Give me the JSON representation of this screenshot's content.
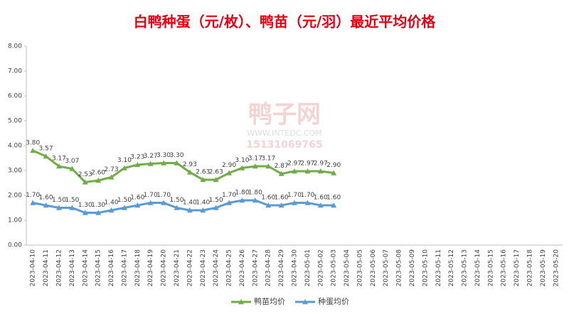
{
  "chart_data": {
    "type": "line",
    "title": "白鸭种蛋（元/枚）、鸭苗（元/羽）最近平均价格",
    "watermark": [
      "鸭子网",
      "WWW.INTEDC.COM",
      "15131069765"
    ],
    "categories": [
      "2023-04-10",
      "2023-04-11",
      "2023-04-12",
      "2023-04-13",
      "2023-04-14",
      "2023-04-15",
      "2023-04-16",
      "2023-04-17",
      "2023-04-18",
      "2023-04-19",
      "2023-04-20",
      "2023-04-21",
      "2023-04-22",
      "2023-04-23",
      "2023-04-24",
      "2023-04-25",
      "2023-04-26",
      "2023-04-27",
      "2023-04-28",
      "2023-04-29",
      "2023-04-30",
      "2023-05-01",
      "2023-05-02",
      "2023-05-03",
      "2023-05-04",
      "2023-05-05",
      "2023-05-06",
      "2023-05-07",
      "2023-05-08",
      "2023-05-09",
      "2023-05-10",
      "2023-05-11",
      "2023-05-12",
      "2023-05-13",
      "2023-05-14",
      "2023-05-15",
      "2023-05-16",
      "2023-05-17",
      "2023-05-18",
      "2023-05-19",
      "2023-05-20"
    ],
    "series": [
      {
        "name": "鸭苗均价",
        "color": "#70ad47",
        "values": [
          3.8,
          3.57,
          3.17,
          3.07,
          2.53,
          2.6,
          2.73,
          3.1,
          3.23,
          3.27,
          3.3,
          3.3,
          2.93,
          2.63,
          2.63,
          2.9,
          3.1,
          3.17,
          3.17,
          2.87,
          2.97,
          2.97,
          2.97,
          2.9,
          null,
          null,
          null,
          null,
          null,
          null,
          null,
          null,
          null,
          null,
          null,
          null,
          null,
          null,
          null,
          null,
          null
        ],
        "value_labels": [
          "3.80",
          "3.57",
          "3.17",
          "3.07",
          "2.53",
          "2.60",
          "2.73",
          "3.10",
          "3.23",
          "3.27",
          "3.30",
          "3.30",
          "2.93",
          "2.63",
          "2.63",
          "2.90",
          "3.10",
          "3.17",
          "3.17",
          "2.87",
          "2.97",
          "2.97",
          "2.97",
          "2.90",
          null,
          null,
          null,
          null,
          null,
          null,
          null,
          null,
          null,
          null,
          null,
          null,
          null,
          null,
          null,
          null,
          null
        ]
      },
      {
        "name": "种蛋均价",
        "color": "#5b9bd5",
        "values": [
          1.7,
          1.6,
          1.5,
          1.5,
          1.3,
          1.3,
          1.4,
          1.5,
          1.6,
          1.7,
          1.7,
          1.5,
          1.4,
          1.4,
          1.5,
          1.7,
          1.8,
          1.8,
          1.6,
          1.6,
          1.7,
          1.7,
          1.6,
          1.6,
          null,
          null,
          null,
          null,
          null,
          null,
          null,
          null,
          null,
          null,
          null,
          null,
          null,
          null,
          null,
          null,
          null
        ],
        "value_labels": [
          "1.70",
          "1.60",
          "1.50",
          "1.50",
          "1.30",
          "1.30",
          "1.40",
          "1.50",
          "1.60",
          "1.70",
          "1.70",
          "1.50",
          "1.40",
          "1.40",
          "1.50",
          "1.70",
          "1.80",
          "1.80",
          "1.60",
          "1.60",
          "1.70",
          "1.70",
          "1.60",
          "1.60",
          null,
          null,
          null,
          null,
          null,
          null,
          null,
          null,
          null,
          null,
          null,
          null,
          null,
          null,
          null,
          null,
          null
        ]
      }
    ],
    "ylim": [
      0,
      8
    ],
    "yticks": [
      {
        "value": 0,
        "label": "0.00"
      },
      {
        "value": 1,
        "label": "1.00"
      },
      {
        "value": 2,
        "label": "2.00"
      },
      {
        "value": 3,
        "label": "3.00"
      },
      {
        "value": 4,
        "label": "4.00"
      },
      {
        "value": 5,
        "label": "5.00"
      },
      {
        "value": 6,
        "label": "6.00"
      },
      {
        "value": 7,
        "label": "7.00"
      },
      {
        "value": 8,
        "label": "8.00"
      }
    ],
    "grid": false,
    "legend": "bottom"
  }
}
